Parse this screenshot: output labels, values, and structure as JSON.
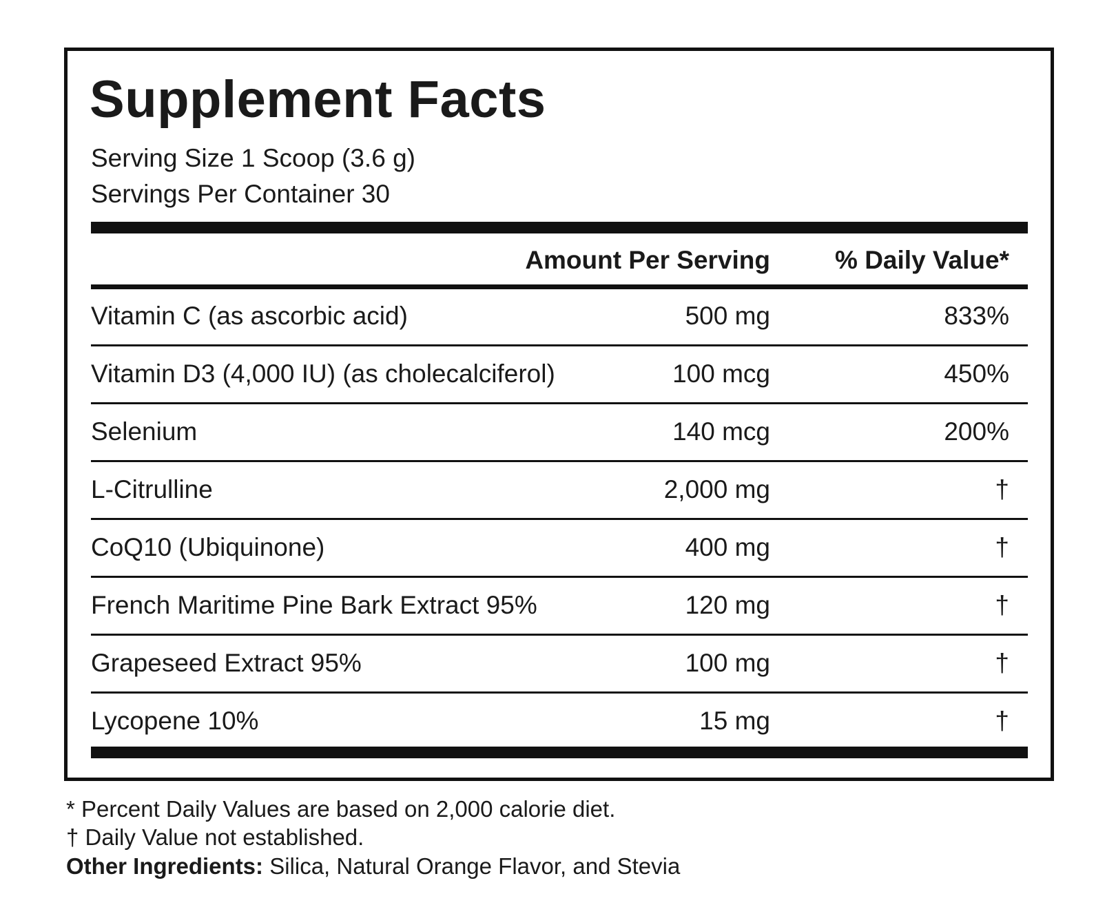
{
  "header": {
    "title": "Supplement Facts",
    "serving_size": "Serving Size 1 Scoop (3.6 g)",
    "servings_per_container": "Servings Per Container 30"
  },
  "table": {
    "headers": [
      "Amount Per Serving",
      "% Daily Value*"
    ],
    "rows": [
      [
        "Vitamin C (as ascorbic acid)",
        "500 mg",
        "833%"
      ],
      [
        "Vitamin D3 (4,000 IU) (as cholecalciferol)",
        "100 mcg",
        "450%"
      ],
      [
        "Selenium",
        "140 mcg",
        "200%"
      ],
      [
        "L-Citrulline",
        "2,000 mg",
        "†"
      ],
      [
        "CoQ10 (Ubiquinone)",
        "400 mg",
        "†"
      ],
      [
        "French Maritime Pine Bark Extract 95%",
        "120 mg",
        "†"
      ],
      [
        "Grapeseed Extract 95%",
        "100 mg",
        "†"
      ],
      [
        "Lycopene 10%",
        "15 mg",
        "†"
      ]
    ]
  },
  "footnotes": [
    "* Percent Daily Values are based on 2,000 calorie diet.",
    "† Daily Value not established."
  ],
  "other_ingredients": {
    "label": "Other Ingredients:",
    "text": "Silica, Natural Orange Flavor, and Stevia"
  }
}
